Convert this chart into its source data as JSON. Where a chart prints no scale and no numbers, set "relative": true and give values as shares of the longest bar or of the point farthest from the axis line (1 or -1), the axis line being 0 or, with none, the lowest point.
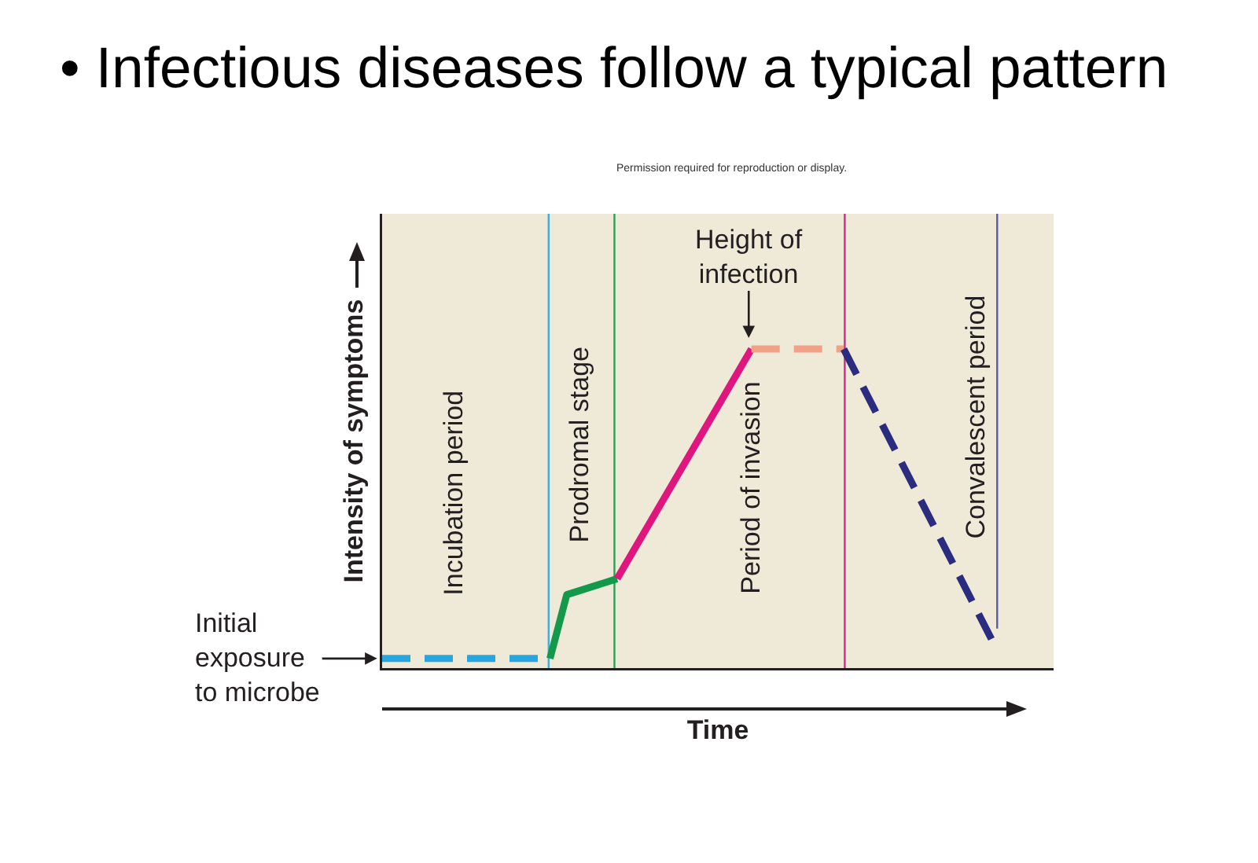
{
  "chart_data": {
    "type": "line",
    "title": "• Infectious diseases follow a typical pattern",
    "xlabel": "Time",
    "ylabel": "Intensity of symptoms",
    "relative": true,
    "grid": false,
    "categories": [
      null,
      null,
      null,
      null,
      null,
      null,
      null,
      null,
      null,
      null,
      null,
      null,
      null,
      null,
      null,
      null,
      null,
      null,
      null,
      null,
      null,
      null,
      null,
      null,
      null,
      null,
      null,
      null,
      null,
      null,
      null,
      null,
      null,
      null,
      null,
      null,
      null,
      null,
      null,
      null,
      null,
      null,
      null,
      null,
      null,
      null,
      null,
      null,
      null,
      null,
      null,
      null,
      null,
      null,
      null,
      null,
      null,
      null,
      null,
      null,
      null,
      null,
      null,
      null,
      null,
      null,
      null,
      null,
      null,
      null,
      null,
      null,
      null,
      null,
      null,
      null,
      null,
      null,
      null,
      null,
      null
    ],
    "series": [
      {
        "color": "#27a6df",
        "line_style": "dashed",
        "values": [
          0.03,
          null,
          null,
          null,
          null,
          null,
          null,
          null,
          null,
          null,
          null,
          null,
          null,
          null,
          null,
          null,
          null,
          null,
          null,
          null,
          0.03,
          null,
          null,
          null,
          null,
          null,
          null,
          null,
          null,
          null,
          null,
          null,
          null,
          null,
          null,
          null,
          null,
          null,
          null,
          null,
          null,
          null,
          null,
          null,
          null,
          null,
          null,
          null,
          null,
          null,
          null,
          null,
          null,
          null,
          null,
          null,
          null,
          null,
          null,
          null,
          null,
          null,
          null,
          null,
          null,
          null,
          null,
          null,
          null,
          null,
          null,
          null,
          null,
          null,
          null,
          null,
          null,
          null,
          null,
          null,
          null
        ]
      },
      {
        "color": "#13994a",
        "line_style": "solid",
        "values": [
          null,
          null,
          null,
          null,
          null,
          null,
          null,
          null,
          null,
          null,
          null,
          null,
          null,
          null,
          null,
          null,
          null,
          null,
          null,
          null,
          0.03,
          null,
          0.23,
          null,
          null,
          null,
          null,
          null,
          0.28,
          null,
          null,
          null,
          null,
          null,
          null,
          null,
          null,
          null,
          null,
          null,
          null,
          null,
          null,
          null,
          null,
          null,
          null,
          null,
          null,
          null,
          null,
          null,
          null,
          null,
          null,
          null,
          null,
          null,
          null,
          null,
          null,
          null,
          null,
          null,
          null,
          null,
          null,
          null,
          null,
          null,
          null,
          null,
          null,
          null,
          null,
          null,
          null,
          null,
          null,
          null,
          null
        ]
      },
      {
        "color": "#e0167f",
        "line_style": "solid",
        "values": [
          null,
          null,
          null,
          null,
          null,
          null,
          null,
          null,
          null,
          null,
          null,
          null,
          null,
          null,
          null,
          null,
          null,
          null,
          null,
          null,
          null,
          null,
          null,
          null,
          null,
          null,
          null,
          null,
          0.28,
          null,
          null,
          null,
          null,
          null,
          null,
          null,
          null,
          null,
          null,
          null,
          null,
          null,
          null,
          null,
          1,
          null,
          null,
          null,
          null,
          null,
          null,
          null,
          null,
          null,
          null,
          null,
          null,
          null,
          null,
          null,
          null,
          null,
          null,
          null,
          null,
          null,
          null,
          null,
          null,
          null,
          null,
          null,
          null,
          null,
          null,
          null,
          null,
          null,
          null,
          null,
          null
        ]
      },
      {
        "color": "#f2a187",
        "line_style": "dashed",
        "values": [
          null,
          null,
          null,
          null,
          null,
          null,
          null,
          null,
          null,
          null,
          null,
          null,
          null,
          null,
          null,
          null,
          null,
          null,
          null,
          null,
          null,
          null,
          null,
          null,
          null,
          null,
          null,
          null,
          null,
          null,
          null,
          null,
          null,
          null,
          null,
          null,
          null,
          null,
          null,
          null,
          null,
          null,
          null,
          null,
          1,
          null,
          null,
          null,
          null,
          null,
          null,
          null,
          null,
          null,
          null,
          1,
          null,
          null,
          null,
          null,
          null,
          null,
          null,
          null,
          null,
          null,
          null,
          null,
          null,
          null,
          null,
          null,
          null,
          null,
          null,
          null,
          null,
          null,
          null,
          null,
          null
        ]
      },
      {
        "color": "#2a2c80",
        "line_style": "dashed",
        "values": [
          null,
          null,
          null,
          null,
          null,
          null,
          null,
          null,
          null,
          null,
          null,
          null,
          null,
          null,
          null,
          null,
          null,
          null,
          null,
          null,
          null,
          null,
          null,
          null,
          null,
          null,
          null,
          null,
          null,
          null,
          null,
          null,
          null,
          null,
          null,
          null,
          null,
          null,
          null,
          null,
          null,
          null,
          null,
          null,
          null,
          null,
          null,
          null,
          null,
          null,
          null,
          null,
          null,
          null,
          null,
          1,
          null,
          null,
          null,
          null,
          null,
          null,
          null,
          null,
          null,
          null,
          null,
          null,
          null,
          null,
          null,
          null,
          null,
          0.07,
          null,
          null,
          null,
          null,
          null,
          null,
          null
        ]
      }
    ],
    "annotations": [
      "Permission required for reproduction or display.",
      "Initial\nexposure\nto microbe",
      "Height of\ninfection",
      "Incubation period",
      "Prodromal stage",
      "Period of invasion",
      "Convalescent period"
    ]
  }
}
